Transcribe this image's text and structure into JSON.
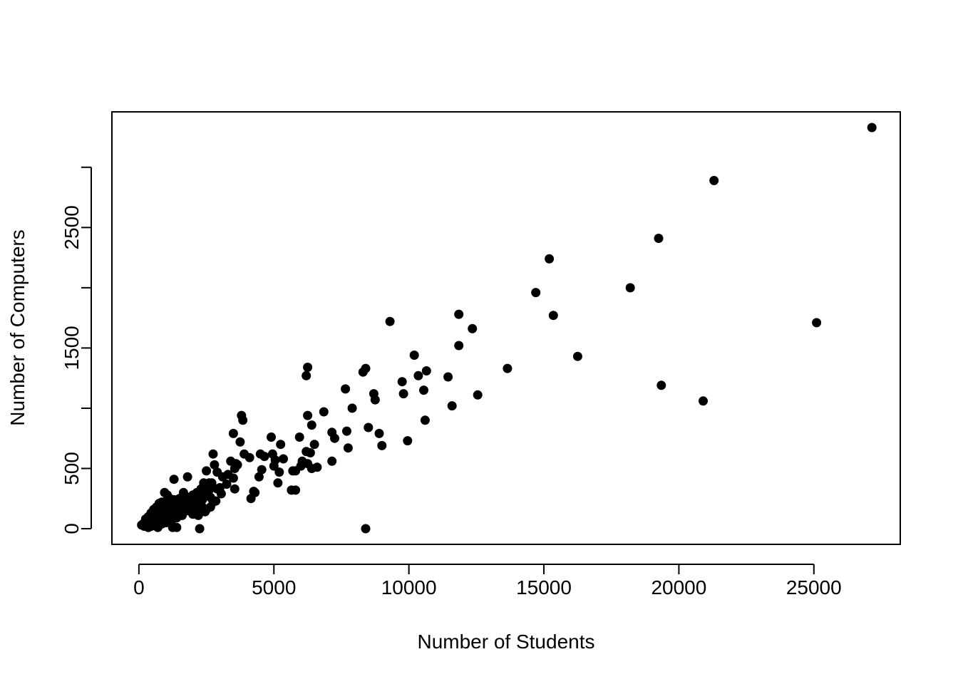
{
  "chart_data": {
    "type": "scatter",
    "title": "",
    "xlabel": "Number of Students",
    "ylabel": "Number of Computers",
    "xlim": [
      -1000,
      28200
    ],
    "ylim": [
      -130,
      3460
    ],
    "xticks": [
      0,
      5000,
      10000,
      15000,
      20000,
      25000
    ],
    "yticks": [
      0,
      500,
      1000,
      1500,
      2000,
      2500,
      3000
    ],
    "ytick_labels_shown": [
      "0",
      "500",
      "1500",
      "2500"
    ],
    "grid": false,
    "legend": "none",
    "marker_color": "#000000",
    "points": [
      [
        27150,
        3330
      ],
      [
        21300,
        2890
      ],
      [
        19250,
        2410
      ],
      [
        15200,
        2240
      ],
      [
        14700,
        1960
      ],
      [
        18200,
        2000
      ],
      [
        25100,
        1710
      ],
      [
        9300,
        1720
      ],
      [
        11850,
        1780
      ],
      [
        12350,
        1660
      ],
      [
        15350,
        1770
      ],
      [
        16250,
        1430
      ],
      [
        11850,
        1520
      ],
      [
        10200,
        1440
      ],
      [
        13650,
        1330
      ],
      [
        19350,
        1190
      ],
      [
        20900,
        1060
      ],
      [
        8400,
        1330
      ],
      [
        8300,
        1300
      ],
      [
        6250,
        1340
      ],
      [
        6200,
        1270
      ],
      [
        10650,
        1310
      ],
      [
        10350,
        1270
      ],
      [
        11450,
        1260
      ],
      [
        9750,
        1220
      ],
      [
        9800,
        1120
      ],
      [
        10550,
        1150
      ],
      [
        12550,
        1110
      ],
      [
        8700,
        1120
      ],
      [
        8750,
        1070
      ],
      [
        7650,
        1160
      ],
      [
        11600,
        1020
      ],
      [
        7900,
        1000
      ],
      [
        6850,
        970
      ],
      [
        6250,
        940
      ],
      [
        6400,
        860
      ],
      [
        3800,
        940
      ],
      [
        3850,
        900
      ],
      [
        10600,
        900
      ],
      [
        8500,
        840
      ],
      [
        7700,
        810
      ],
      [
        8900,
        790
      ],
      [
        7150,
        800
      ],
      [
        7250,
        750
      ],
      [
        5950,
        760
      ],
      [
        4900,
        760
      ],
      [
        5250,
        700
      ],
      [
        6500,
        700
      ],
      [
        3500,
        790
      ],
      [
        3750,
        720
      ],
      [
        6200,
        640
      ],
      [
        6350,
        630
      ],
      [
        9000,
        690
      ],
      [
        7750,
        670
      ],
      [
        9950,
        730
      ],
      [
        3900,
        620
      ],
      [
        4100,
        590
      ],
      [
        4500,
        620
      ],
      [
        4650,
        600
      ],
      [
        4950,
        620
      ],
      [
        5050,
        570
      ],
      [
        5350,
        580
      ],
      [
        6050,
        560
      ],
      [
        7150,
        560
      ],
      [
        6250,
        540
      ],
      [
        6400,
        500
      ],
      [
        6600,
        510
      ],
      [
        6000,
        520
      ],
      [
        5700,
        480
      ],
      [
        5800,
        480
      ],
      [
        5200,
        470
      ],
      [
        5000,
        520
      ],
      [
        4550,
        490
      ],
      [
        4450,
        430
      ],
      [
        5150,
        380
      ],
      [
        5650,
        320
      ],
      [
        5800,
        320
      ],
      [
        4250,
        310
      ],
      [
        4300,
        300
      ],
      [
        4150,
        250
      ],
      [
        8400,
        0
      ],
      [
        2750,
        620
      ],
      [
        3400,
        560
      ],
      [
        3600,
        540
      ],
      [
        3550,
        500
      ],
      [
        3650,
        530
      ],
      [
        3300,
        450
      ],
      [
        3500,
        420
      ],
      [
        3550,
        330
      ],
      [
        3250,
        370
      ],
      [
        2900,
        470
      ],
      [
        3100,
        430
      ],
      [
        3000,
        340
      ],
      [
        2800,
        530
      ],
      [
        2500,
        480
      ],
      [
        2600,
        380
      ],
      [
        2400,
        380
      ],
      [
        2700,
        380
      ],
      [
        2900,
        330
      ],
      [
        2450,
        300
      ],
      [
        2650,
        260
      ],
      [
        2750,
        220
      ],
      [
        2500,
        160
      ],
      [
        2350,
        180
      ],
      [
        2200,
        250
      ],
      [
        2300,
        330
      ],
      [
        1800,
        430
      ],
      [
        1300,
        410
      ],
      [
        1500,
        250
      ],
      [
        1650,
        300
      ],
      [
        1850,
        260
      ],
      [
        2000,
        280
      ],
      [
        1600,
        200
      ],
      [
        1750,
        220
      ],
      [
        1900,
        180
      ],
      [
        2100,
        200
      ],
      [
        2250,
        150
      ],
      [
        1450,
        180
      ],
      [
        1300,
        240
      ],
      [
        1150,
        200
      ],
      [
        950,
        300
      ],
      [
        1050,
        280
      ],
      [
        850,
        220
      ],
      [
        750,
        210
      ],
      [
        650,
        180
      ],
      [
        550,
        160
      ],
      [
        450,
        130
      ],
      [
        350,
        100
      ],
      [
        250,
        80
      ],
      [
        150,
        40
      ],
      [
        100,
        30
      ],
      [
        200,
        20
      ],
      [
        350,
        10
      ],
      [
        500,
        30
      ],
      [
        650,
        60
      ],
      [
        800,
        90
      ],
      [
        950,
        120
      ],
      [
        1100,
        150
      ],
      [
        1250,
        110
      ],
      [
        1400,
        90
      ],
      [
        1550,
        140
      ],
      [
        1700,
        160
      ],
      [
        850,
        40
      ],
      [
        1000,
        50
      ],
      [
        1200,
        60
      ],
      [
        700,
        10
      ],
      [
        450,
        20
      ],
      [
        1250,
        10
      ],
      [
        1400,
        10
      ],
      [
        2250,
        0
      ],
      [
        300,
        60
      ],
      [
        600,
        110
      ],
      [
        750,
        130
      ],
      [
        900,
        160
      ],
      [
        1050,
        130
      ],
      [
        1200,
        180
      ],
      [
        1350,
        150
      ],
      [
        1000,
        220
      ],
      [
        1150,
        250
      ],
      [
        1550,
        230
      ],
      [
        1700,
        270
      ],
      [
        1850,
        230
      ],
      [
        2050,
        240
      ],
      [
        2150,
        300
      ],
      [
        2350,
        240
      ],
      [
        2050,
        170
      ],
      [
        1950,
        140
      ],
      [
        400,
        60
      ],
      [
        550,
        80
      ],
      [
        850,
        100
      ],
      [
        700,
        150
      ],
      [
        600,
        50
      ],
      [
        1100,
        90
      ],
      [
        1300,
        140
      ],
      [
        1450,
        130
      ],
      [
        1600,
        110
      ],
      [
        1800,
        150
      ],
      [
        2000,
        120
      ],
      [
        2200,
        110
      ],
      [
        2450,
        140
      ],
      [
        2650,
        180
      ],
      [
        2850,
        230
      ],
      [
        3050,
        290
      ],
      [
        2600,
        320
      ],
      [
        2300,
        280
      ],
      [
        1950,
        210
      ],
      [
        1650,
        190
      ],
      [
        900,
        180
      ],
      [
        800,
        160
      ],
      [
        500,
        110
      ]
    ]
  }
}
